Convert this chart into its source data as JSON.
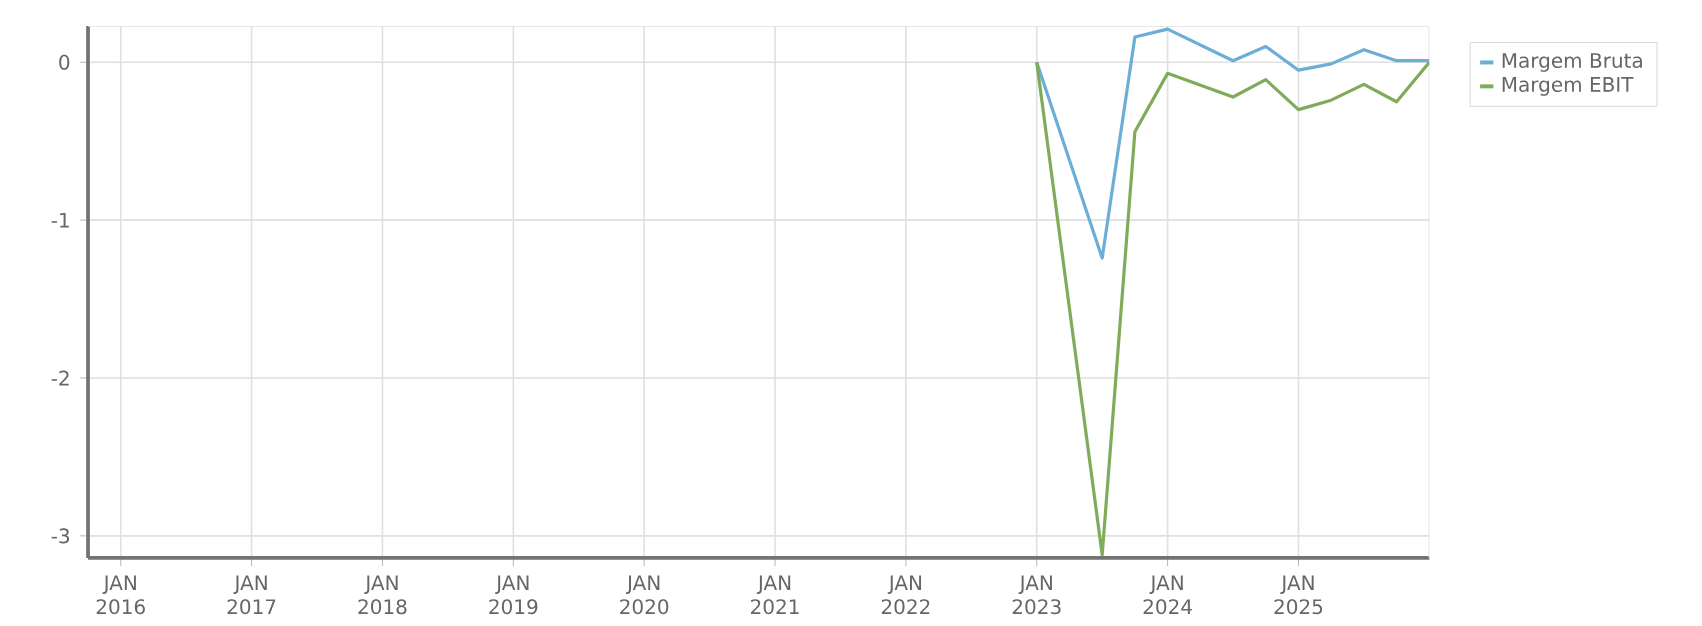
{
  "chart_data": {
    "type": "line",
    "x": [
      "2023-01",
      "2023-07",
      "2023-10",
      "2024-01",
      "2024-07",
      "2024-10",
      "2025-01",
      "2025-04",
      "2025-07",
      "2025-10",
      "2026-01"
    ],
    "series": [
      {
        "name": "Margem Bruta",
        "color": "#6baed6",
        "values": [
          0,
          -1.24,
          0.16,
          0.21,
          0.01,
          0.1,
          -0.05,
          -0.01,
          0.08,
          0.01,
          0.01
        ]
      },
      {
        "name": "Margem EBIT",
        "color": "#7fab5a",
        "values": [
          0,
          -3.12,
          -0.44,
          -0.07,
          -0.22,
          -0.11,
          -0.3,
          -0.24,
          -0.14,
          -0.25,
          0
        ]
      }
    ],
    "xlim": [
      "2015-10",
      "2026-01"
    ],
    "xticks": [
      {
        "value": "2016-01",
        "label": "JAN 2016"
      },
      {
        "value": "2017-01",
        "label": "JAN 2017"
      },
      {
        "value": "2018-01",
        "label": "JAN 2018"
      },
      {
        "value": "2019-01",
        "label": "JAN 2019"
      },
      {
        "value": "2020-01",
        "label": "JAN 2020"
      },
      {
        "value": "2021-01",
        "label": "JAN 2021"
      },
      {
        "value": "2022-01",
        "label": "JAN 2022"
      },
      {
        "value": "2023-01",
        "label": "JAN 2023"
      },
      {
        "value": "2024-01",
        "label": "JAN 2024"
      },
      {
        "value": "2025-01",
        "label": "JAN 2025"
      }
    ],
    "ylim": [
      -3.14,
      0.23
    ],
    "yticks": [
      0,
      -1,
      -2,
      -3
    ],
    "grid": true,
    "legend": "top right",
    "marker": "none",
    "line_style": "solid"
  }
}
